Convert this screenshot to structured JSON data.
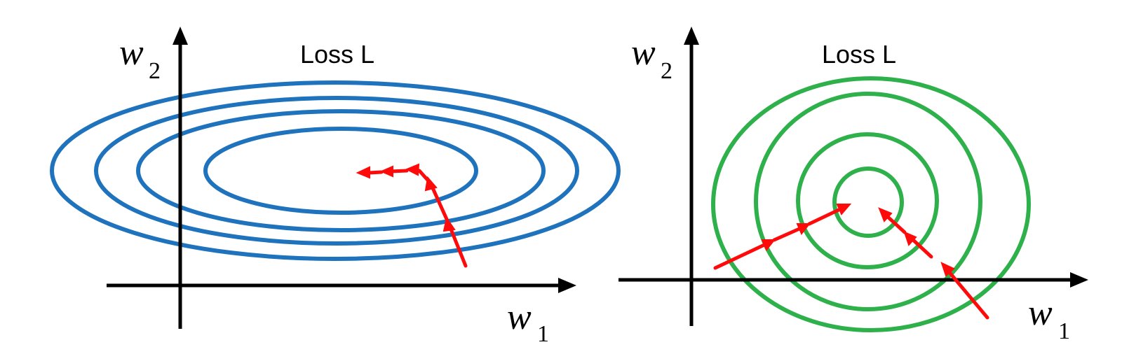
{
  "colors": {
    "axis": "#000000",
    "contour_left": "#1f73bd",
    "contour_right": "#2eb04b",
    "update_arrow": "#ff0a0a",
    "background": "#ffffff"
  },
  "panels": [
    {
      "title": "Loss L",
      "x_axis": {
        "var": "w",
        "sub": "1"
      },
      "y_axis": {
        "var": "w",
        "sub": "2"
      }
    },
    {
      "title": "Loss L",
      "x_axis": {
        "var": "w",
        "sub": "1"
      },
      "y_axis": {
        "var": "w",
        "sub": "2"
      }
    }
  ]
}
